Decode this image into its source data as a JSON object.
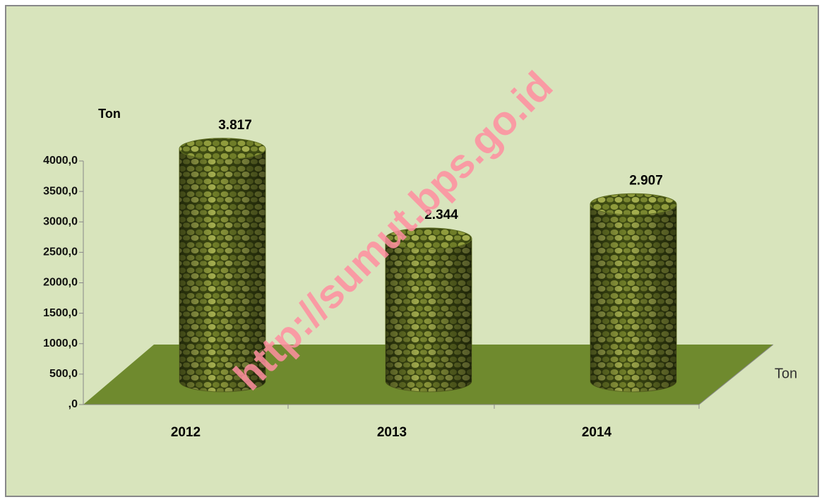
{
  "chart_data": {
    "type": "cylinder",
    "y_label": "Ton",
    "series_name": "Ton",
    "categories": [
      "2012",
      "2013",
      "2014"
    ],
    "values": [
      3817,
      2344,
      2907
    ],
    "value_labels": [
      "3.817",
      "2.344",
      "2.907"
    ],
    "color": "#5f6e22",
    "ylim": [
      0,
      4000
    ],
    "yticks": [
      {
        "value": 0,
        "label": ",0"
      },
      {
        "value": 500,
        "label": "500,0"
      },
      {
        "value": 1000,
        "label": "1000,0"
      },
      {
        "value": 1500,
        "label": "1500,0"
      },
      {
        "value": 2000,
        "label": "2000,0"
      },
      {
        "value": 2500,
        "label": "2500,0"
      },
      {
        "value": 3000,
        "label": "3000,0"
      },
      {
        "value": 3500,
        "label": "3500,0"
      },
      {
        "value": 4000,
        "label": "4000,0"
      }
    ]
  },
  "watermark": "http://sumut.bps.go.id"
}
